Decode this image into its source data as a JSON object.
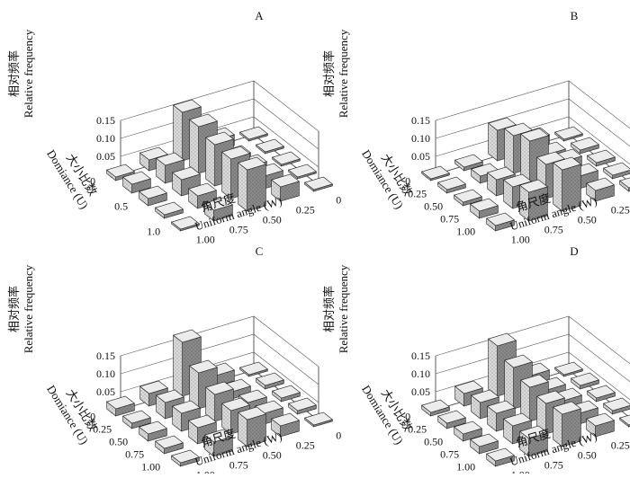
{
  "chart_data": [
    {
      "type": "bar3d",
      "panel_label": "A",
      "ylabel_cn": "相对频率",
      "ylabel_en": "Relative frequency",
      "zlabel_cn": "大小比数",
      "zlabel_en": "Domiance (U)",
      "xlabel_cn": "角尺度",
      "xlabel_en": "Uniform angle (W)",
      "ylim": [
        0,
        0.15
      ],
      "y_ticks": [
        "0",
        "0.05",
        "0.10",
        "0.15"
      ],
      "w_ticks": [
        "0",
        "0.25",
        "0.50",
        "0.75",
        "1.00"
      ],
      "u_ticks": [
        "0",
        "0.5",
        "1.0"
      ],
      "w_values": [
        0,
        0.25,
        0.5,
        0.75,
        1.0
      ],
      "u_values": [
        0,
        0.25,
        0.5,
        0.75,
        1.0
      ],
      "values": [
        [
          0.005,
          0.03,
          0.135,
          0.03,
          0.01
        ],
        [
          0.005,
          0.015,
          0.13,
          0.05,
          0.025
        ],
        [
          0.005,
          0.025,
          0.115,
          0.045,
          0.02
        ],
        [
          0.005,
          0.035,
          0.11,
          0.035,
          0.01
        ],
        [
          0.005,
          0.04,
          0.115,
          0.03,
          0.005
        ]
      ]
    },
    {
      "type": "bar3d",
      "panel_label": "B",
      "ylabel_cn": "相对频率",
      "ylabel_en": "Relative frequency",
      "zlabel_cn": "大小比数",
      "zlabel_en": "Domiance (U)",
      "xlabel_cn": "角尺度",
      "xlabel_en": "Uniform angle (W)",
      "ylim": [
        0,
        0.15
      ],
      "y_ticks": [
        "0",
        "0.05",
        "0.10",
        "0.15"
      ],
      "w_ticks": [
        "0",
        "0.25",
        "0.50",
        "0.75",
        "1.00"
      ],
      "u_ticks": [
        "0",
        "0.25",
        "0.50",
        "0.75",
        "1.00"
      ],
      "w_values": [
        0,
        0.25,
        0.5,
        0.75,
        1.0
      ],
      "u_values": [
        0,
        0.25,
        0.5,
        0.75,
        1.0
      ],
      "values": [
        [
          0.005,
          0.03,
          0.085,
          0.01,
          0.005
        ],
        [
          0.01,
          0.025,
          0.105,
          0.02,
          0.01
        ],
        [
          0.01,
          0.04,
          0.125,
          0.045,
          0.01
        ],
        [
          0.01,
          0.035,
          0.095,
          0.06,
          0.02
        ],
        [
          0.01,
          0.03,
          0.115,
          0.08,
          0.015
        ]
      ]
    },
    {
      "type": "bar3d",
      "panel_label": "C",
      "ylabel_cn": "相对频率",
      "ylabel_en": "Relative frequency",
      "zlabel_cn": "大小比数",
      "zlabel_en": "Domiance (U)",
      "xlabel_cn": "角尺度",
      "xlabel_en": "Uniform angle (W)",
      "ylim": [
        0,
        0.15
      ],
      "y_ticks": [
        "0",
        "0.05",
        "0.10",
        "0.15"
      ],
      "w_ticks": [
        "0",
        "0.25",
        "0.50",
        "0.75",
        "1.00"
      ],
      "u_ticks": [
        "0",
        "0.25",
        "0.50",
        "0.75",
        "1.00"
      ],
      "w_values": [
        0,
        0.25,
        0.5,
        0.75,
        1.0
      ],
      "u_values": [
        0,
        0.25,
        0.5,
        0.75,
        1.0
      ],
      "values": [
        [
          0.005,
          0.03,
          0.15,
          0.035,
          0.02
        ],
        [
          0.01,
          0.02,
          0.1,
          0.045,
          0.015
        ],
        [
          0.01,
          0.025,
          0.075,
          0.05,
          0.02
        ],
        [
          0.01,
          0.03,
          0.065,
          0.045,
          0.015
        ],
        [
          0.005,
          0.03,
          0.075,
          0.04,
          0.01
        ]
      ]
    },
    {
      "type": "bar3d",
      "panel_label": "D",
      "ylabel_cn": "相对频率",
      "ylabel_en": "Relative frequency",
      "zlabel_cn": "大小比数",
      "zlabel_en": "Domiance (U)",
      "xlabel_cn": "角尺度",
      "xlabel_en": "Uniform angle (W)",
      "ylim": [
        0,
        0.15
      ],
      "y_ticks": [
        "0",
        "0.05",
        "0.10",
        "0.15"
      ],
      "w_ticks": [
        "0",
        "0.25",
        "0.50",
        "0.75",
        "1.00"
      ],
      "u_ticks": [
        "0",
        "0.25",
        "0.50",
        "0.75",
        "1.00"
      ],
      "w_values": [
        0,
        0.25,
        0.5,
        0.75,
        1.0
      ],
      "u_values": [
        0,
        0.25,
        0.5,
        0.75,
        1.0
      ],
      "values": [
        [
          0.005,
          0.03,
          0.14,
          0.035,
          0.01
        ],
        [
          0.01,
          0.025,
          0.115,
          0.045,
          0.015
        ],
        [
          0.01,
          0.03,
          0.095,
          0.05,
          0.02
        ],
        [
          0.01,
          0.03,
          0.085,
          0.05,
          0.02
        ],
        [
          0.005,
          0.03,
          0.09,
          0.05,
          0.015
        ]
      ]
    }
  ],
  "colors": {
    "bar_front": "#d6d6d6",
    "bar_side": "#8c8c8c",
    "bar_top": "#ececec",
    "grid": "#555555"
  }
}
